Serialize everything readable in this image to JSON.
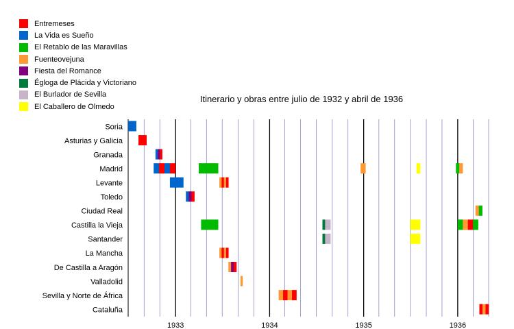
{
  "chart_data": {
    "type": "timeline",
    "title": "Itinerario y obras entre julio de 1932 y abril de 1936",
    "x_range": [
      "1932-07-01",
      "1936-04-30"
    ],
    "x_ticks": [
      "1933",
      "1934",
      "1935",
      "1936"
    ],
    "grid": "monthly vertical gridlines, bold at year boundaries",
    "legend_position": "top-left",
    "works": [
      {
        "name": "Entremeses",
        "color": "#ff0000"
      },
      {
        "name": "La Vida es Sueño",
        "color": "#0066cc"
      },
      {
        "name": "El Retablo de las Maravillas",
        "color": "#00bb00"
      },
      {
        "name": "Fuenteovejuna",
        "color": "#ff9933"
      },
      {
        "name": "Fiesta del Romance",
        "color": "#800080"
      },
      {
        "name": "Égloga de Plácida y Victoriano",
        "color": "#007a3d"
      },
      {
        "name": "El Burlador de Sevilla",
        "color": "#c8b4c8"
      },
      {
        "name": "El Caballero de Olmedo",
        "color": "#ffff00"
      }
    ],
    "regions": [
      "Soria",
      "Asturias y Galicia",
      "Granada",
      "Madrid",
      "Levante",
      "Toledo",
      "Ciudad Real",
      "Castilla la Vieja",
      "Santander",
      "La Mancha",
      "De Castilla a Aragón",
      "Valladolid",
      "Sevilla y Norte de África",
      "Cataluña"
    ],
    "events": [
      {
        "region": "Soria",
        "start": "1932-07-01",
        "end": "1932-08-01",
        "works": [
          "La Vida es Sueño"
        ]
      },
      {
        "region": "Asturias y Galicia",
        "start": "1932-08-10",
        "end": "1932-09-10",
        "works": [
          "Entremeses"
        ]
      },
      {
        "region": "Granada",
        "start": "1932-10-15",
        "end": "1932-11-10",
        "works": [
          "La Vida es Sueño",
          "Fiesta del Romance",
          "Entremeses"
        ]
      },
      {
        "region": "Madrid",
        "start": "1932-10-08",
        "end": "1932-12-31",
        "works": [
          "La Vida es Sueño",
          "Entremeses",
          "La Vida es Sueño",
          "Entremeses"
        ]
      },
      {
        "region": "Madrid",
        "start": "1933-04-01",
        "end": "1933-06-15",
        "works": [
          "El Retablo de las Maravillas"
        ]
      },
      {
        "region": "Madrid",
        "start": "1934-12-20",
        "end": "1935-01-08",
        "works": [
          "Fuenteovejuna"
        ]
      },
      {
        "region": "Madrid",
        "start": "1935-07-25",
        "end": "1935-08-08",
        "works": [
          "El Caballero de Olmedo"
        ]
      },
      {
        "region": "Madrid",
        "start": "1935-12-25",
        "end": "1936-01-20",
        "works": [
          "El Retablo de las Maravillas",
          "Fuenteovejuna"
        ]
      },
      {
        "region": "Levante",
        "start": "1932-12-10",
        "end": "1933-01-31",
        "works": [
          "La Vida es Sueño"
        ]
      },
      {
        "region": "Levante",
        "start": "1933-06-20",
        "end": "1933-07-25",
        "works": [
          "Fuenteovejuna",
          "Entremeses",
          "Fuenteovejuna",
          "Entremeses"
        ]
      },
      {
        "region": "Toledo",
        "start": "1933-02-10",
        "end": "1933-03-15",
        "works": [
          "La Vida es Sueño",
          "Fiesta del Romance",
          "Entremeses"
        ]
      },
      {
        "region": "Ciudad Real",
        "start": "1936-03-10",
        "end": "1936-04-05",
        "works": [
          "Fuenteovejuna",
          "El Retablo de las Maravillas"
        ]
      },
      {
        "region": "Castilla la Vieja",
        "start": "1933-04-10",
        "end": "1933-04-20",
        "works": [
          "El Retablo de las Maravillas"
        ]
      },
      {
        "region": "Castilla la Vieja",
        "start": "1933-04-20",
        "end": "1933-06-15",
        "works": [
          "El Retablo de las Maravillas"
        ]
      },
      {
        "region": "Castilla la Vieja",
        "start": "1934-07-25",
        "end": "1934-08-25",
        "works": [
          "Égloga de Plácida y Victoriano",
          "El Burlador de Sevilla",
          "El Burlador de Sevilla"
        ]
      },
      {
        "region": "Castilla la Vieja",
        "start": "1935-07-01",
        "end": "1935-08-08",
        "works": [
          "El Caballero de Olmedo"
        ]
      },
      {
        "region": "Castilla la Vieja",
        "start": "1936-01-01",
        "end": "1936-03-20",
        "works": [
          "El Retablo de las Maravillas",
          "Fuenteovejuna",
          "Entremeses",
          "El Retablo de las Maravillas"
        ]
      },
      {
        "region": "Santander",
        "start": "1934-07-25",
        "end": "1934-08-25",
        "works": [
          "Égloga de Plácida y Victoriano",
          "El Burlador de Sevilla",
          "El Burlador de Sevilla"
        ]
      },
      {
        "region": "Santander",
        "start": "1935-07-01",
        "end": "1935-08-08",
        "works": [
          "El Caballero de Olmedo"
        ]
      },
      {
        "region": "La Mancha",
        "start": "1933-06-20",
        "end": "1933-07-25",
        "works": [
          "Fuenteovejuna",
          "Entremeses",
          "Fuenteovejuna",
          "Entremeses"
        ]
      },
      {
        "region": "De Castilla a Aragón",
        "start": "1933-07-25",
        "end": "1933-08-25",
        "works": [
          "Fuenteovejuna",
          "Fiesta del Romance",
          "Entremeses"
        ]
      },
      {
        "region": "Valladolid",
        "start": "1933-09-10",
        "end": "1933-09-18",
        "works": [
          "Fuenteovejuna"
        ]
      },
      {
        "region": "Sevilla y Norte de África",
        "start": "1934-02-05",
        "end": "1934-04-15",
        "works": [
          "Fuenteovejuna",
          "Entremeses",
          "Fuenteovejuna",
          "Entremeses"
        ]
      },
      {
        "region": "Cataluña",
        "start": "1936-03-25",
        "end": "1936-04-30",
        "works": [
          "Entremeses",
          "Fuenteovejuna",
          "Entremeses"
        ]
      }
    ]
  }
}
